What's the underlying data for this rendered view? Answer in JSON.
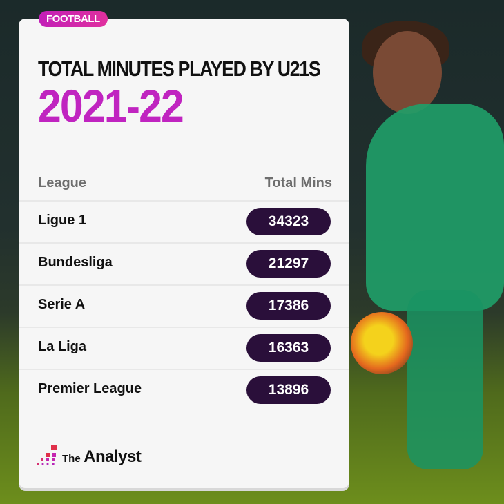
{
  "tag": "FOOTBALL",
  "title": "TOTAL MINUTES PLAYED BY U21S",
  "season": "2021-22",
  "chart_data": {
    "type": "table",
    "columns": [
      "League",
      "Total Mins"
    ],
    "rows": [
      {
        "league": "Ligue 1",
        "mins": "34323"
      },
      {
        "league": "Bundesliga",
        "mins": "21297"
      },
      {
        "league": "Serie A",
        "mins": "17386"
      },
      {
        "league": "La Liga",
        "mins": "16363"
      },
      {
        "league": "Premier League",
        "mins": "13896"
      }
    ]
  },
  "brand": {
    "the": "The",
    "name": "Analyst"
  },
  "colors": {
    "accent": "#c024c0",
    "pill": "#2a0f3a",
    "card": "#f6f6f6"
  }
}
